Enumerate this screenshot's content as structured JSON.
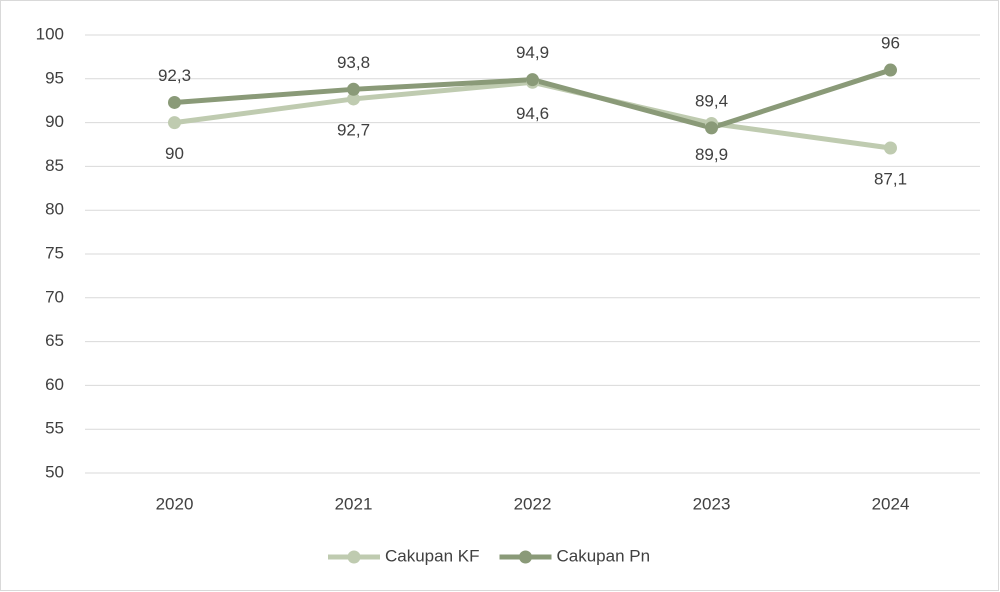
{
  "chart_data": {
    "type": "line",
    "categories": [
      "2020",
      "2021",
      "2022",
      "2023",
      "2024"
    ],
    "series": [
      {
        "name": "Cakupan KF",
        "color": "#bfcbb0",
        "values": [
          90,
          92.7,
          94.6,
          89.9,
          87.1
        ],
        "value_labels": [
          "90",
          "92,7",
          "94,6",
          "89,9",
          "87,1"
        ]
      },
      {
        "name": "Cakupan Pn",
        "color": "#8a9a78",
        "values": [
          92.3,
          93.8,
          94.9,
          89.4,
          96
        ],
        "value_labels": [
          "92,3",
          "93,8",
          "94,9",
          "89,4",
          "96"
        ]
      }
    ],
    "ylim": [
      50,
      100
    ],
    "yticks": [
      50,
      55,
      60,
      65,
      70,
      75,
      80,
      85,
      90,
      95,
      100
    ],
    "grid": true,
    "legend": "bottom"
  }
}
